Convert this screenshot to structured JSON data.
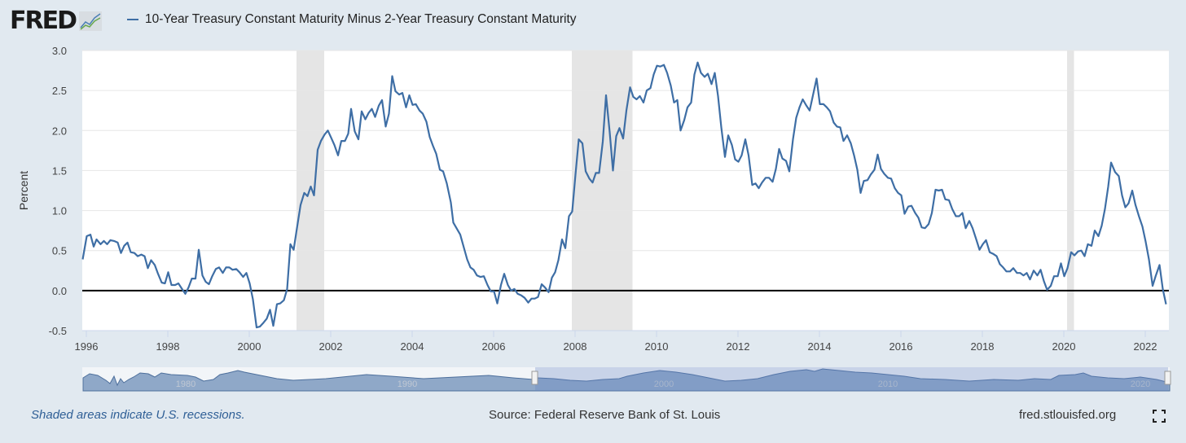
{
  "header": {
    "logo": "FRED",
    "legend_label": "10-Year Treasury Constant Maturity Minus 2-Year Treasury Constant Maturity"
  },
  "footer": {
    "recession_note": "Shaded areas indicate U.S. recessions.",
    "source": "Source: Federal Reserve Bank of St. Louis",
    "site": "fred.stlouisfed.org"
  },
  "navigator": {
    "labels": [
      "1980",
      "1990",
      "2000",
      "2010",
      "2020"
    ]
  },
  "colors": {
    "line": "#3e6ea5",
    "recession": "#e5e5e5",
    "background": "#e1e9f0",
    "zero_line": "#000000"
  },
  "chart_data": {
    "type": "line",
    "title": "10-Year Treasury Constant Maturity Minus 2-Year Treasury Constant Maturity",
    "xlabel": "",
    "ylabel": "Percent",
    "xlim": [
      1995.9,
      2022.58
    ],
    "ylim": [
      -0.5,
      3.0
    ],
    "yticks": [
      "3.0",
      "2.5",
      "2.0",
      "1.5",
      "1.0",
      "0.5",
      "0.0",
      "-0.5"
    ],
    "xticks": [
      "1996",
      "1998",
      "2000",
      "2002",
      "2004",
      "2006",
      "2008",
      "2010",
      "2012",
      "2014",
      "2016",
      "2018",
      "2020",
      "2022"
    ],
    "grid": true,
    "recessions": [
      [
        2001.16,
        2001.84
      ],
      [
        2007.92,
        2009.41
      ],
      [
        2020.08,
        2020.25
      ]
    ],
    "series": [
      {
        "name": "10-Year Treasury Constant Maturity Minus 2-Year Treasury Constant Maturity",
        "x": [
          1995.91,
          1996.01,
          1996.1,
          1996.18,
          1996.25,
          1996.35,
          1996.43,
          1996.51,
          1996.59,
          1996.68,
          1996.77,
          1996.85,
          1996.93,
          1997.01,
          1997.09,
          1997.18,
          1997.26,
          1997.35,
          1997.43,
          1997.51,
          1997.59,
          1997.68,
          1997.76,
          1997.85,
          1997.93,
          1998.01,
          1998.09,
          1998.18,
          1998.26,
          1998.35,
          1998.43,
          1998.51,
          1998.59,
          1998.68,
          1998.76,
          1998.85,
          1998.93,
          1999.01,
          1999.09,
          1999.18,
          1999.26,
          1999.35,
          1999.43,
          1999.51,
          1999.59,
          1999.68,
          1999.76,
          1999.85,
          1999.93,
          2000.01,
          2000.09,
          2000.18,
          2000.26,
          2000.35,
          2000.43,
          2000.51,
          2000.59,
          2000.68,
          2000.76,
          2000.85,
          2000.93,
          2001.01,
          2001.09,
          2001.18,
          2001.26,
          2001.35,
          2001.43,
          2001.51,
          2001.59,
          2001.68,
          2001.76,
          2001.85,
          2001.93,
          2002.01,
          2002.09,
          2002.18,
          2002.26,
          2002.35,
          2002.43,
          2002.5,
          2002.59,
          2002.68,
          2002.76,
          2002.85,
          2002.93,
          2003.01,
          2003.09,
          2003.18,
          2003.26,
          2003.35,
          2003.43,
          2003.51,
          2003.59,
          2003.68,
          2003.76,
          2003.85,
          2003.93,
          2004.01,
          2004.09,
          2004.18,
          2004.26,
          2004.35,
          2004.43,
          2004.51,
          2004.59,
          2004.68,
          2004.76,
          2004.85,
          2004.95,
          2005.01,
          2005.18,
          2005.35,
          2005.43,
          2005.51,
          2005.59,
          2005.68,
          2005.76,
          2005.85,
          2005.93,
          2006.01,
          2006.09,
          2006.18,
          2006.26,
          2006.35,
          2006.43,
          2006.51,
          2006.59,
          2006.68,
          2006.76,
          2006.85,
          2006.93,
          2007.01,
          2007.09,
          2007.18,
          2007.26,
          2007.35,
          2007.43,
          2007.51,
          2007.59,
          2007.68,
          2007.76,
          2007.85,
          2007.93,
          2008.01,
          2008.09,
          2008.18,
          2008.26,
          2008.35,
          2008.43,
          2008.51,
          2008.59,
          2008.68,
          2008.76,
          2008.85,
          2008.93,
          2009.01,
          2009.09,
          2009.18,
          2009.26,
          2009.35,
          2009.43,
          2009.51,
          2009.59,
          2009.68,
          2009.76,
          2009.85,
          2009.93,
          2010.01,
          2010.09,
          2010.18,
          2010.26,
          2010.35,
          2010.43,
          2010.51,
          2010.59,
          2010.68,
          2010.76,
          2010.85,
          2010.93,
          2011.01,
          2011.09,
          2011.18,
          2011.26,
          2011.35,
          2011.43,
          2011.51,
          2011.59,
          2011.68,
          2011.76,
          2011.85,
          2011.93,
          2012.01,
          2012.09,
          2012.18,
          2012.26,
          2012.35,
          2012.43,
          2012.51,
          2012.59,
          2012.68,
          2012.76,
          2012.85,
          2012.93,
          2013.01,
          2013.09,
          2013.18,
          2013.26,
          2013.35,
          2013.43,
          2013.51,
          2013.59,
          2013.68,
          2013.76,
          2013.93,
          2014.01,
          2014.1,
          2014.18,
          2014.26,
          2014.35,
          2014.43,
          2014.51,
          2014.59,
          2014.68,
          2014.77,
          2014.85,
          2014.93,
          2015.01,
          2015.09,
          2015.18,
          2015.26,
          2015.35,
          2015.43,
          2015.51,
          2015.59,
          2015.68,
          2015.76,
          2015.85,
          2015.93,
          2016.01,
          2016.09,
          2016.18,
          2016.26,
          2016.35,
          2016.43,
          2016.51,
          2016.59,
          2016.68,
          2016.76,
          2016.85,
          2016.93,
          2017.01,
          2017.09,
          2017.18,
          2017.26,
          2017.35,
          2017.43,
          2017.51,
          2017.59,
          2017.68,
          2017.76,
          2017.85,
          2017.93,
          2018.01,
          2018.09,
          2018.18,
          2018.26,
          2018.35,
          2018.43,
          2018.51,
          2018.59,
          2018.68,
          2018.76,
          2018.85,
          2018.93,
          2019.01,
          2019.09,
          2019.17,
          2019.26,
          2019.35,
          2019.43,
          2019.51,
          2019.59,
          2019.68,
          2019.76,
          2019.85,
          2019.93,
          2020.01,
          2020.09,
          2020.18,
          2020.26,
          2020.35,
          2020.43,
          2020.51,
          2020.59,
          2020.68,
          2020.76,
          2020.85,
          2020.93,
          2021.01,
          2021.09,
          2021.16,
          2021.26,
          2021.35,
          2021.43,
          2021.51,
          2021.59,
          2021.68,
          2021.76,
          2021.85,
          2021.93,
          2022.01,
          2022.09,
          2022.18,
          2022.26,
          2022.35,
          2022.43,
          2022.51
        ],
        "y": [
          0.39,
          0.68,
          0.7,
          0.55,
          0.64,
          0.58,
          0.62,
          0.58,
          0.63,
          0.62,
          0.6,
          0.47,
          0.56,
          0.6,
          0.48,
          0.47,
          0.43,
          0.45,
          0.43,
          0.28,
          0.38,
          0.32,
          0.21,
          0.1,
          0.09,
          0.23,
          0.07,
          0.07,
          0.09,
          0.02,
          -0.04,
          0.04,
          0.15,
          0.15,
          0.51,
          0.19,
          0.11,
          0.08,
          0.18,
          0.27,
          0.29,
          0.22,
          0.29,
          0.29,
          0.26,
          0.27,
          0.23,
          0.17,
          0.22,
          0.09,
          -0.11,
          -0.46,
          -0.45,
          -0.4,
          -0.35,
          -0.24,
          -0.44,
          -0.17,
          -0.16,
          -0.12,
          0.02,
          0.58,
          0.51,
          0.81,
          1.07,
          1.22,
          1.18,
          1.3,
          1.19,
          1.76,
          1.87,
          1.95,
          2.0,
          1.91,
          1.82,
          1.69,
          1.87,
          1.87,
          1.96,
          2.27,
          1.99,
          1.89,
          2.24,
          2.14,
          2.22,
          2.27,
          2.17,
          2.31,
          2.38,
          2.05,
          2.21,
          2.68,
          2.49,
          2.45,
          2.47,
          2.29,
          2.44,
          2.32,
          2.33,
          2.25,
          2.21,
          2.11,
          1.92,
          1.81,
          1.71,
          1.51,
          1.49,
          1.34,
          1.1,
          0.85,
          0.7,
          0.39,
          0.29,
          0.26,
          0.19,
          0.17,
          0.18,
          0.07,
          -0.01,
          -0.01,
          -0.16,
          0.07,
          0.21,
          0.07,
          0.0,
          0.02,
          -0.04,
          -0.06,
          -0.09,
          -0.15,
          -0.1,
          -0.1,
          -0.08,
          0.08,
          0.04,
          -0.02,
          0.16,
          0.23,
          0.38,
          0.64,
          0.53,
          0.93,
          0.99,
          1.45,
          1.89,
          1.84,
          1.49,
          1.4,
          1.35,
          1.47,
          1.47,
          1.86,
          2.44,
          1.98,
          1.5,
          1.93,
          2.03,
          1.9,
          2.25,
          2.54,
          2.42,
          2.39,
          2.43,
          2.35,
          2.5,
          2.53,
          2.7,
          2.81,
          2.8,
          2.82,
          2.72,
          2.56,
          2.35,
          2.38,
          2.0,
          2.13,
          2.29,
          2.35,
          2.7,
          2.85,
          2.72,
          2.67,
          2.71,
          2.58,
          2.72,
          2.43,
          2.04,
          1.67,
          1.94,
          1.82,
          1.64,
          1.61,
          1.69,
          1.89,
          1.69,
          1.32,
          1.34,
          1.28,
          1.35,
          1.41,
          1.41,
          1.36,
          1.52,
          1.77,
          1.65,
          1.62,
          1.49,
          1.89,
          2.16,
          2.29,
          2.39,
          2.31,
          2.25,
          2.65,
          2.33,
          2.33,
          2.29,
          2.24,
          2.1,
          2.05,
          2.04,
          1.87,
          1.94,
          1.84,
          1.69,
          1.51,
          1.22,
          1.37,
          1.38,
          1.45,
          1.51,
          1.7,
          1.52,
          1.46,
          1.41,
          1.4,
          1.28,
          1.22,
          1.19,
          0.96,
          1.05,
          1.06,
          0.97,
          0.91,
          0.79,
          0.78,
          0.83,
          0.97,
          1.26,
          1.25,
          1.26,
          1.14,
          1.13,
          1.02,
          0.93,
          0.93,
          0.97,
          0.78,
          0.87,
          0.78,
          0.64,
          0.51,
          0.58,
          0.63,
          0.48,
          0.46,
          0.43,
          0.33,
          0.29,
          0.24,
          0.24,
          0.28,
          0.22,
          0.22,
          0.19,
          0.22,
          0.14,
          0.25,
          0.19,
          0.26,
          0.12,
          0.01,
          0.06,
          0.18,
          0.18,
          0.34,
          0.18,
          0.28,
          0.48,
          0.44,
          0.49,
          0.5,
          0.43,
          0.58,
          0.56,
          0.75,
          0.68,
          0.81,
          1.02,
          1.3,
          1.6,
          1.48,
          1.43,
          1.19,
          1.04,
          1.09,
          1.25,
          1.07,
          0.92,
          0.8,
          0.61,
          0.39,
          0.06,
          0.19,
          0.32,
          0.02,
          -0.17
        ]
      }
    ]
  }
}
